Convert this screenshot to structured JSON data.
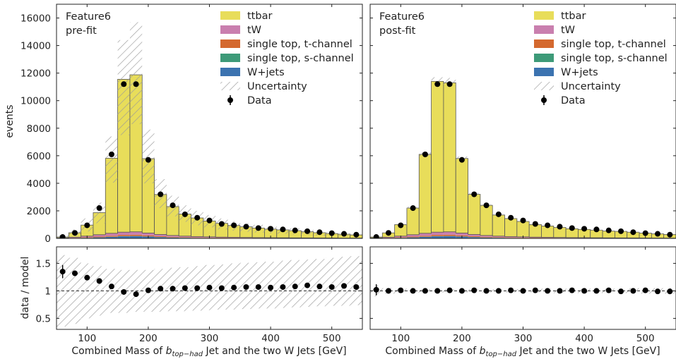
{
  "colors": {
    "ttbar": "#e8dd5a",
    "tW": "#c97fae",
    "single_top_t": "#d4692f",
    "single_top_s": "#3d9a78",
    "wjets": "#3b73b0",
    "uncertainty": "#999999",
    "data": "#000000"
  },
  "x_axis_label": "Combined Mass of b_{top-had} Jet and the two W Jets [GeV]",
  "y_axis_label_main": "events",
  "y_axis_label_ratio": "data / model",
  "legend": [
    "ttbar",
    "tW",
    "single top, t-channel",
    "single top, s-channel",
    "W+jets",
    "Uncertainty",
    "Data"
  ],
  "chart_data": [
    {
      "type": "bar",
      "stacked": true,
      "annotation": [
        "Feature6",
        "pre-fit"
      ],
      "xlabel": "Combined Mass of b_{top-had} Jet and the two W Jets [GeV]",
      "ylabel": "events",
      "xlim": [
        50,
        550
      ],
      "ylim": [
        0,
        17000
      ],
      "xticks": [
        100,
        200,
        300,
        400,
        500
      ],
      "yticks": [
        0,
        2000,
        4000,
        6000,
        8000,
        10000,
        12000,
        14000,
        16000
      ],
      "bin_edges": [
        50,
        70,
        90,
        110,
        130,
        150,
        170,
        190,
        210,
        230,
        250,
        270,
        290,
        310,
        330,
        350,
        370,
        390,
        410,
        430,
        450,
        470,
        490,
        510,
        530,
        550
      ],
      "series": [
        {
          "name": "W+jets",
          "values": [
            10,
            20,
            40,
            70,
            110,
            150,
            160,
            130,
            90,
            60,
            45,
            35,
            30,
            25,
            20,
            18,
            15,
            13,
            12,
            10,
            9,
            8,
            7,
            6,
            5
          ]
        },
        {
          "name": "single top, s-channel",
          "values": [
            2,
            3,
            5,
            8,
            10,
            12,
            12,
            10,
            8,
            6,
            5,
            4,
            4,
            3,
            3,
            2,
            2,
            2,
            2,
            1,
            1,
            1,
            1,
            1,
            1
          ]
        },
        {
          "name": "single top, t-channel",
          "values": [
            8,
            15,
            30,
            50,
            70,
            90,
            95,
            80,
            60,
            45,
            35,
            30,
            25,
            20,
            18,
            15,
            13,
            12,
            10,
            9,
            8,
            7,
            6,
            5,
            5
          ]
        },
        {
          "name": "tW",
          "values": [
            20,
            50,
            90,
            140,
            180,
            200,
            210,
            170,
            130,
            100,
            80,
            65,
            55,
            45,
            40,
            35,
            30,
            27,
            24,
            21,
            19,
            17,
            15,
            13,
            12
          ]
        },
        {
          "name": "ttbar",
          "values": [
            60,
            320,
            800,
            1600,
            5450,
            11100,
            11400,
            5400,
            2900,
            2100,
            1600,
            1350,
            1150,
            1000,
            860,
            770,
            690,
            620,
            570,
            520,
            450,
            380,
            320,
            280,
            230
          ]
        }
      ],
      "uncertainty_band": {
        "lower": [
          0,
          150,
          500,
          1100,
          4050,
          7500,
          8300,
          4000,
          2200,
          1600,
          1200,
          950,
          800,
          650,
          560,
          480,
          420,
          370,
          330,
          300,
          250,
          210,
          170,
          150,
          120
        ],
        "upper": [
          250,
          650,
          1450,
          2600,
          7400,
          14400,
          15700,
          7900,
          4300,
          3100,
          2400,
          2000,
          1700,
          1450,
          1250,
          1100,
          990,
          880,
          800,
          730,
          640,
          540,
          460,
          400,
          340
        ]
      },
      "data_points": {
        "x": [
          60,
          80,
          100,
          120,
          140,
          160,
          180,
          200,
          220,
          240,
          260,
          280,
          300,
          320,
          340,
          360,
          380,
          400,
          420,
          440,
          460,
          480,
          500,
          520,
          540
        ],
        "y": [
          100,
          400,
          950,
          2200,
          6100,
          11200,
          11200,
          5700,
          3200,
          2400,
          1750,
          1500,
          1300,
          1050,
          950,
          850,
          750,
          700,
          650,
          580,
          520,
          450,
          380,
          330,
          270
        ]
      },
      "ratio": {
        "ylabel": "data / model",
        "ylim": [
          0.3,
          1.8
        ],
        "yticks": [
          0.5,
          1,
          1.5
        ],
        "reference": 1,
        "values": [
          1.35,
          1.32,
          1.24,
          1.18,
          1.08,
          0.98,
          0.94,
          1.01,
          1.04,
          1.04,
          1.05,
          1.05,
          1.06,
          1.05,
          1.06,
          1.07,
          1.07,
          1.06,
          1.07,
          1.08,
          1.1,
          1.08,
          1.07,
          1.09,
          1.07
        ],
        "errors": [
          0.12,
          0.05,
          0.03,
          0.02,
          0.015,
          0.01,
          0.01,
          0.015,
          0.02,
          0.02,
          0.02,
          0.02,
          0.02,
          0.02,
          0.03,
          0.03,
          0.03,
          0.03,
          0.03,
          0.03,
          0.04,
          0.04,
          0.04,
          0.04,
          0.05
        ],
        "band_lower": [
          0.35,
          0.4,
          0.5,
          0.55,
          0.6,
          0.6,
          0.62,
          0.62,
          0.62,
          0.63,
          0.63,
          0.64,
          0.65,
          0.66,
          0.66,
          0.67,
          0.68,
          0.68,
          0.69,
          0.7,
          0.71,
          0.72,
          0.73,
          0.73,
          0.74
        ],
        "band_upper": [
          1.65,
          1.6,
          1.5,
          1.45,
          1.4,
          1.38,
          1.38,
          1.38,
          1.4,
          1.42,
          1.43,
          1.45,
          1.47,
          1.48,
          1.5,
          1.51,
          1.52,
          1.53,
          1.55,
          1.56,
          1.57,
          1.58,
          1.6,
          1.62,
          1.63
        ]
      }
    },
    {
      "type": "bar",
      "stacked": true,
      "annotation": [
        "Feature6",
        "post-fit"
      ],
      "xlabel": "Combined Mass of b_{top-had} Jet and the two W Jets [GeV]",
      "xlim": [
        50,
        550
      ],
      "ylim": [
        0,
        17000
      ],
      "xticks": [
        100,
        200,
        300,
        400,
        500
      ],
      "bin_edges": [
        50,
        70,
        90,
        110,
        130,
        150,
        170,
        190,
        210,
        230,
        250,
        270,
        290,
        310,
        330,
        350,
        370,
        390,
        410,
        430,
        450,
        470,
        490,
        510,
        530,
        550
      ],
      "series": [
        {
          "name": "W+jets",
          "values": [
            10,
            20,
            40,
            70,
            110,
            150,
            160,
            130,
            90,
            60,
            45,
            35,
            30,
            25,
            20,
            18,
            15,
            13,
            12,
            10,
            9,
            8,
            7,
            6,
            5
          ]
        },
        {
          "name": "single top, s-channel",
          "values": [
            2,
            3,
            5,
            8,
            10,
            12,
            12,
            10,
            8,
            6,
            5,
            4,
            4,
            3,
            3,
            2,
            2,
            2,
            2,
            1,
            1,
            1,
            1,
            1,
            1
          ]
        },
        {
          "name": "single top, t-channel",
          "values": [
            8,
            15,
            30,
            50,
            70,
            90,
            95,
            80,
            60,
            45,
            35,
            30,
            25,
            20,
            18,
            15,
            13,
            12,
            10,
            9,
            8,
            7,
            6,
            5,
            5
          ]
        },
        {
          "name": "tW",
          "values": [
            20,
            50,
            90,
            140,
            180,
            200,
            210,
            170,
            130,
            100,
            80,
            65,
            55,
            45,
            40,
            35,
            30,
            27,
            24,
            21,
            19,
            17,
            15,
            13,
            12
          ]
        },
        {
          "name": "ttbar",
          "values": [
            60,
            312,
            835,
            1932,
            5730,
            10948,
            10823,
            5410,
            2912,
            2189,
            1535,
            1306,
            1116,
            907,
            819,
            728,
            640,
            596,
            552,
            489,
            472,
            417,
            353,
            305,
            257
          ]
        }
      ],
      "uncertainty_band": {
        "lower": [
          80,
          370,
          950,
          2100,
          5950,
          11200,
          11150,
          5650,
          3100,
          2330,
          1650,
          1400,
          1190,
          970,
          870,
          770,
          680,
          630,
          580,
          500,
          480,
          420,
          350,
          300,
          250
        ],
        "upper": [
          120,
          430,
          1050,
          2300,
          6250,
          11700,
          11650,
          5950,
          3300,
          2470,
          1750,
          1500,
          1270,
          1030,
          930,
          830,
          720,
          670,
          620,
          540,
          520,
          460,
          390,
          340,
          290
        ]
      },
      "data_points": {
        "x": [
          60,
          80,
          100,
          120,
          140,
          160,
          180,
          200,
          220,
          240,
          260,
          280,
          300,
          320,
          340,
          360,
          380,
          400,
          420,
          440,
          460,
          480,
          500,
          520,
          540
        ],
        "y": [
          100,
          400,
          950,
          2200,
          6100,
          11200,
          11200,
          5700,
          3200,
          2400,
          1750,
          1500,
          1300,
          1050,
          950,
          850,
          750,
          700,
          650,
          580,
          520,
          450,
          380,
          330,
          270
        ]
      },
      "ratio": {
        "ylim": [
          0.3,
          1.8
        ],
        "yticks": [
          0.5,
          1,
          1.5
        ],
        "reference": 1,
        "values": [
          1.02,
          1.0,
          1.01,
          1.0,
          1.0,
          1.0,
          1.01,
          1.0,
          1.01,
          1.0,
          1.0,
          1.01,
          1.0,
          1.01,
          1.0,
          1.0,
          1.01,
          1.0,
          1.0,
          1.01,
          0.99,
          1.0,
          1.01,
          0.99,
          0.99
        ],
        "errors": [
          0.1,
          0.05,
          0.03,
          0.02,
          0.015,
          0.01,
          0.01,
          0.015,
          0.02,
          0.02,
          0.02,
          0.02,
          0.02,
          0.02,
          0.03,
          0.03,
          0.03,
          0.03,
          0.03,
          0.03,
          0.04,
          0.04,
          0.04,
          0.04,
          0.05
        ],
        "band_lower": [
          0.9,
          0.95,
          0.96,
          0.97,
          0.97,
          0.97,
          0.97,
          0.97,
          0.97,
          0.97,
          0.97,
          0.97,
          0.97,
          0.97,
          0.96,
          0.96,
          0.96,
          0.96,
          0.96,
          0.96,
          0.96,
          0.95,
          0.95,
          0.95,
          0.95
        ],
        "band_upper": [
          1.1,
          1.05,
          1.04,
          1.03,
          1.03,
          1.03,
          1.03,
          1.03,
          1.03,
          1.03,
          1.03,
          1.03,
          1.03,
          1.03,
          1.04,
          1.04,
          1.04,
          1.04,
          1.04,
          1.04,
          1.04,
          1.05,
          1.05,
          1.05,
          1.05
        ]
      }
    }
  ]
}
